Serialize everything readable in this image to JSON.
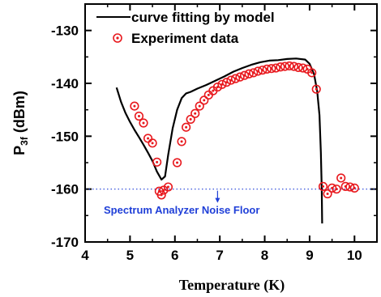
{
  "chart_data": {
    "type": "scatter",
    "xlabel": "Temperature (K)",
    "ylabel_main": "P",
    "ylabel_sub": "3f",
    "ylabel_unit": " (dBm)",
    "xlim": [
      4,
      10.5
    ],
    "ylim": [
      -170,
      -125
    ],
    "x_ticks": [
      "4",
      "5",
      "6",
      "7",
      "8",
      "9",
      "10"
    ],
    "y_ticks": [
      "-130",
      "-140",
      "-150",
      "-160",
      "-170"
    ],
    "legend_position": "top-right",
    "noise_floor": {
      "y": -160,
      "label": "Spectrum Analyzer Noise Floor",
      "color": "#1f3fd8"
    },
    "series": [
      {
        "name": "curve fitting by model",
        "kind": "line",
        "color": "#000000",
        "points": [
          [
            4.7,
            -140.8
          ],
          [
            4.8,
            -143.5
          ],
          [
            4.9,
            -145.6
          ],
          [
            5.0,
            -147.3
          ],
          [
            5.1,
            -148.8
          ],
          [
            5.2,
            -150.2
          ],
          [
            5.3,
            -151.6
          ],
          [
            5.4,
            -153.1
          ],
          [
            5.5,
            -154.7
          ],
          [
            5.6,
            -156.7
          ],
          [
            5.7,
            -158.2
          ],
          [
            5.78,
            -157.6
          ],
          [
            5.85,
            -153.5
          ],
          [
            5.95,
            -148.5
          ],
          [
            6.05,
            -145.0
          ],
          [
            6.15,
            -142.8
          ],
          [
            6.25,
            -141.9
          ],
          [
            6.35,
            -141.6
          ],
          [
            6.5,
            -141.0
          ],
          [
            6.7,
            -140.3
          ],
          [
            6.9,
            -139.5
          ],
          [
            7.1,
            -138.7
          ],
          [
            7.3,
            -137.8
          ],
          [
            7.5,
            -137.1
          ],
          [
            7.7,
            -136.5
          ],
          [
            7.9,
            -136.0
          ],
          [
            8.1,
            -135.7
          ],
          [
            8.3,
            -135.6
          ],
          [
            8.5,
            -135.4
          ],
          [
            8.7,
            -135.3
          ],
          [
            8.9,
            -135.5
          ],
          [
            9.0,
            -136.3
          ],
          [
            9.1,
            -138.3
          ],
          [
            9.17,
            -141.5
          ],
          [
            9.22,
            -146.0
          ],
          [
            9.25,
            -153.0
          ],
          [
            9.27,
            -160.0
          ],
          [
            9.28,
            -166.5
          ]
        ]
      },
      {
        "name": "Experiment data",
        "kind": "marker",
        "color": "#e8191e",
        "points": [
          [
            5.1,
            -144.3
          ],
          [
            5.2,
            -146.2
          ],
          [
            5.3,
            -147.5
          ],
          [
            5.4,
            -150.4
          ],
          [
            5.5,
            -151.3
          ],
          [
            5.6,
            -154.9
          ],
          [
            5.65,
            -160.4
          ],
          [
            5.7,
            -161.1
          ],
          [
            5.75,
            -160.2
          ],
          [
            5.85,
            -159.6
          ],
          [
            6.05,
            -155.0
          ],
          [
            6.15,
            -151.0
          ],
          [
            6.25,
            -148.3
          ],
          [
            6.35,
            -146.8
          ],
          [
            6.45,
            -145.7
          ],
          [
            6.55,
            -144.3
          ],
          [
            6.65,
            -143.2
          ],
          [
            6.75,
            -142.2
          ],
          [
            6.85,
            -141.4
          ],
          [
            6.95,
            -140.7
          ],
          [
            7.05,
            -140.2
          ],
          [
            7.15,
            -139.8
          ],
          [
            7.25,
            -139.4
          ],
          [
            7.35,
            -139.1
          ],
          [
            7.45,
            -138.8
          ],
          [
            7.55,
            -138.5
          ],
          [
            7.65,
            -138.2
          ],
          [
            7.75,
            -138.0
          ],
          [
            7.85,
            -137.7
          ],
          [
            7.95,
            -137.5
          ],
          [
            8.05,
            -137.3
          ],
          [
            8.15,
            -137.2
          ],
          [
            8.25,
            -137.1
          ],
          [
            8.35,
            -136.9
          ],
          [
            8.45,
            -136.8
          ],
          [
            8.55,
            -136.7
          ],
          [
            8.65,
            -136.8
          ],
          [
            8.75,
            -137.0
          ],
          [
            8.85,
            -137.1
          ],
          [
            8.95,
            -137.3
          ],
          [
            9.05,
            -138.0
          ],
          [
            9.15,
            -141.1
          ],
          [
            9.3,
            -159.5
          ],
          [
            9.4,
            -160.9
          ],
          [
            9.5,
            -159.8
          ],
          [
            9.6,
            -160.0
          ],
          [
            9.7,
            -157.9
          ],
          [
            9.8,
            -159.5
          ],
          [
            9.9,
            -159.6
          ],
          [
            10.0,
            -159.8
          ]
        ]
      }
    ]
  }
}
